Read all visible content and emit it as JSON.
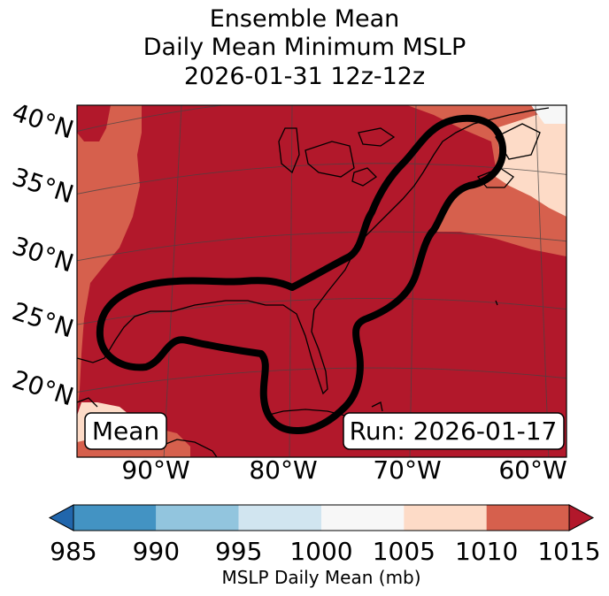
{
  "title": {
    "line1": "Ensemble Mean",
    "line2": "Daily Mean Minimum MSLP",
    "line3": "2026-01-31 12z-12z"
  },
  "map": {
    "lat_labels": [
      "40°N",
      "35°N",
      "30°N",
      "25°N",
      "20°N"
    ],
    "lon_labels": [
      "90°W",
      "80°W",
      "70°W",
      "60°W"
    ],
    "mean_box": "Mean",
    "run_box": "Run: 2026-01-17",
    "colors": {
      "land_shade_dark": "#b2182b",
      "mid_shade": "#d6604d",
      "light_shade": "#fddbc7",
      "white_shade": "#f7f7f7"
    }
  },
  "colorbar": {
    "ticks": [
      "985",
      "990",
      "995",
      "1000",
      "1005",
      "1010",
      "1015"
    ],
    "label": "MSLP Daily Mean (mb)",
    "colors": [
      "#2166ac",
      "#4393c3",
      "#92c5de",
      "#d1e5f0",
      "#f7f7f7",
      "#fddbc7",
      "#d6604d",
      "#b2182b"
    ]
  }
}
